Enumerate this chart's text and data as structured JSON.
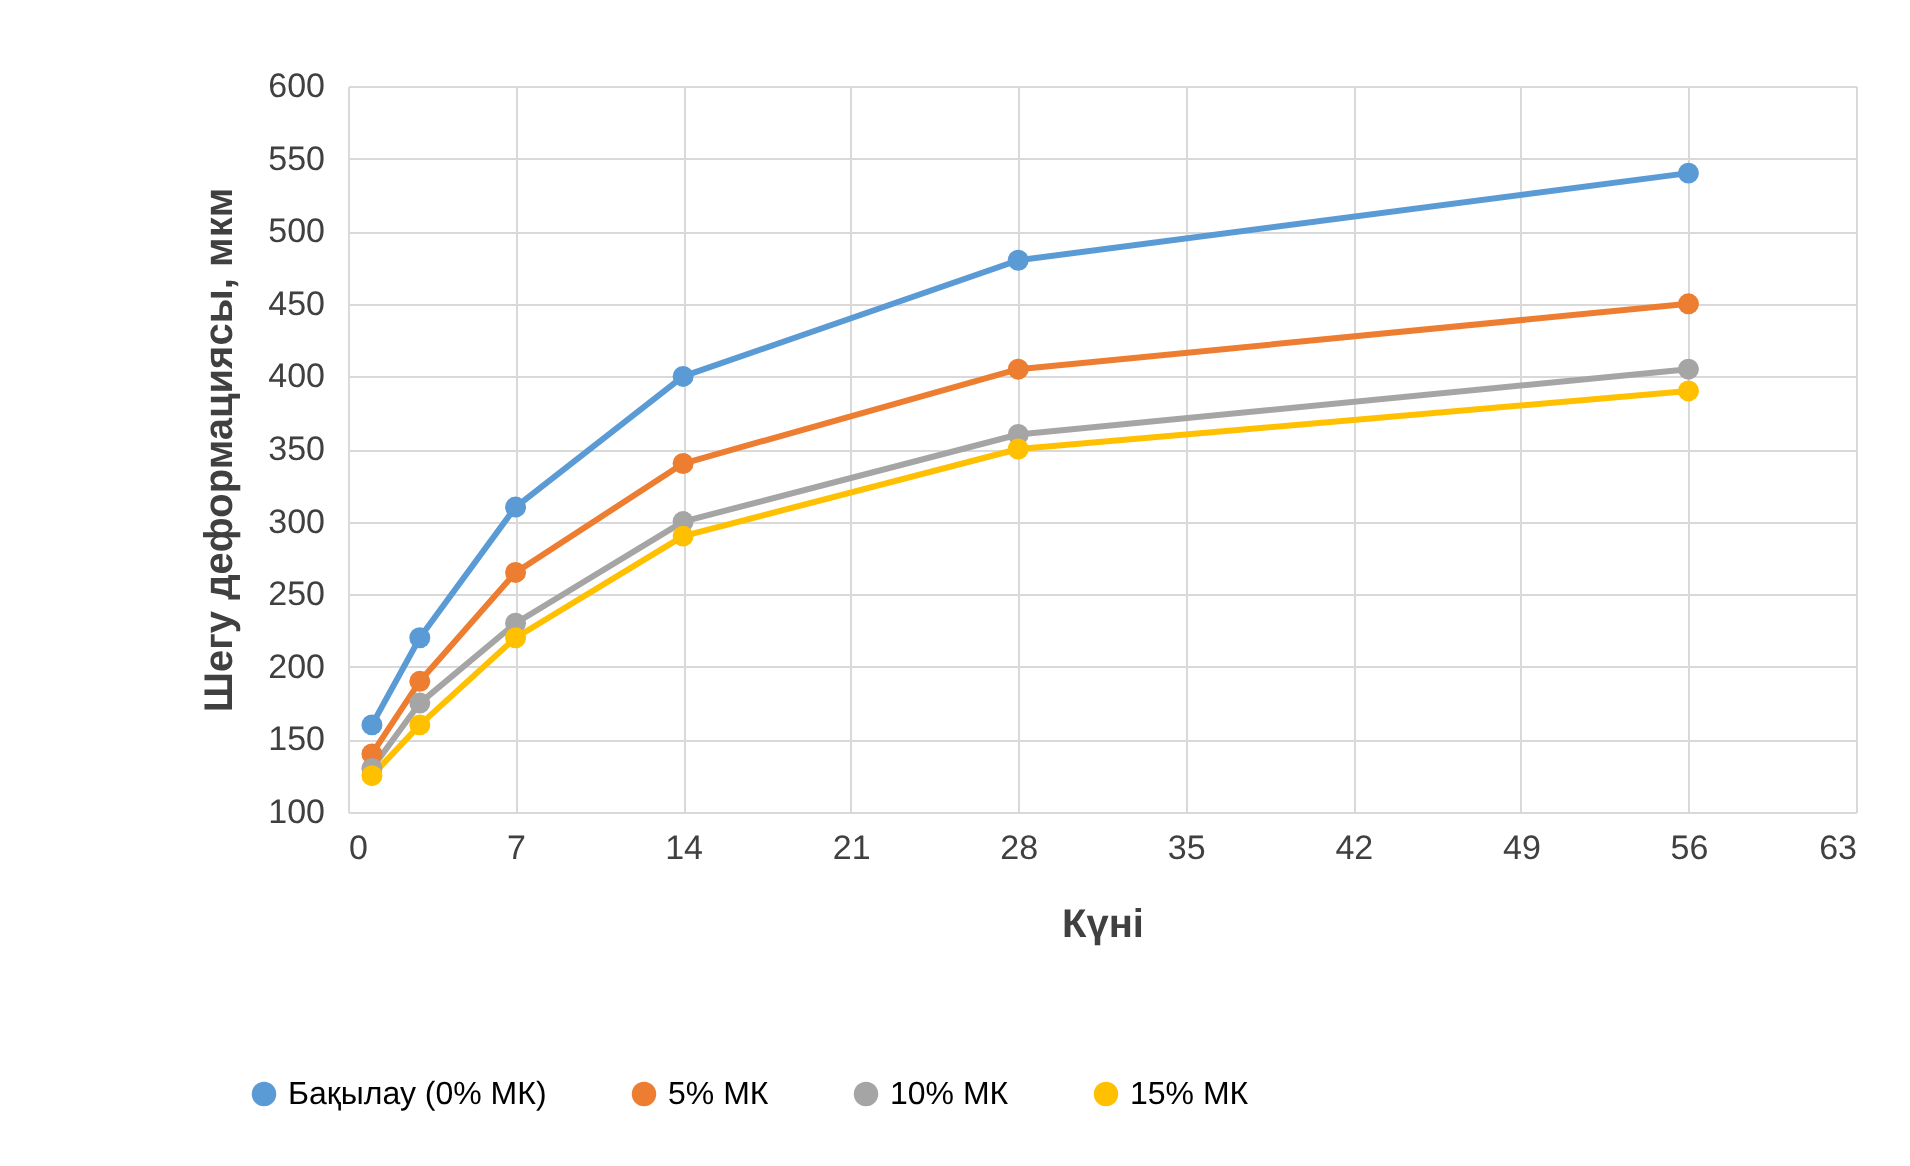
{
  "chart_data": {
    "type": "line",
    "xlabel": "Күні",
    "ylabel": "Шегу деформациясы, мкм",
    "x": [
      1,
      3,
      7,
      14,
      28,
      56
    ],
    "xlim": [
      0,
      63
    ],
    "xticks": [
      0,
      7,
      14,
      21,
      28,
      35,
      42,
      49,
      56,
      63
    ],
    "ylim": [
      100,
      600
    ],
    "yticks": [
      100,
      150,
      200,
      250,
      300,
      350,
      400,
      450,
      500,
      550,
      600
    ],
    "grid": true,
    "legend": "bottom",
    "marker": "circle",
    "line_style": "solid",
    "series": [
      {
        "name": "Бақылау (0% МК)",
        "color": "#5b9bd5",
        "values": [
          160,
          220,
          310,
          400,
          480,
          540
        ]
      },
      {
        "name": "5% МК",
        "color": "#ed7d31",
        "values": [
          140,
          190,
          265,
          340,
          405,
          450
        ]
      },
      {
        "name": "10% МК",
        "color": "#a5a5a5",
        "values": [
          130,
          175,
          230,
          300,
          360,
          405
        ]
      },
      {
        "name": "15% МК",
        "color": "#ffc000",
        "values": [
          125,
          160,
          220,
          290,
          350,
          390
        ]
      }
    ]
  }
}
